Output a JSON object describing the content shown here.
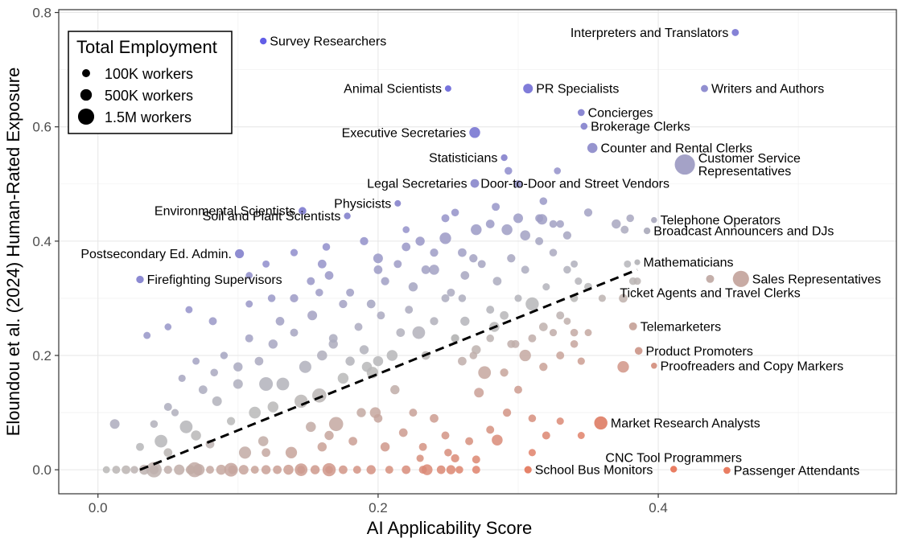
{
  "chart_data": {
    "type": "scatter",
    "xlabel": "AI Applicability Score",
    "ylabel": "Eloundou et al. (2024) Human-Rated Exposure",
    "xlim": [
      -0.028,
      0.57
    ],
    "ylim": [
      -0.042,
      0.805
    ],
    "x_ticks": [
      0.0,
      0.2,
      0.4
    ],
    "x_tick_labels": [
      "0.0",
      "0.2",
      "0.4"
    ],
    "y_ticks": [
      0.0,
      0.2,
      0.4,
      0.6,
      0.8
    ],
    "y_tick_labels": [
      "0.0",
      "0.2",
      "0.4",
      "0.6",
      "0.8"
    ],
    "grid": true,
    "trend_line": {
      "style": "dashed",
      "x": [
        0.03,
        0.385
      ],
      "y": [
        0.0,
        0.35
      ]
    },
    "colors": {
      "low": "#e8765a",
      "mid": "#b8b8b8",
      "high": "#5a55e6"
    },
    "legend": {
      "title": "Total Employment",
      "placement": "top-left",
      "entries": [
        {
          "label": "100K workers",
          "workers": 100000
        },
        {
          "label": "500K workers",
          "workers": 500000
        },
        {
          "label": "1.5M workers",
          "workers": 1500000
        }
      ]
    },
    "labeled_points": [
      {
        "name": "Survey Researchers",
        "x": 0.118,
        "y": 0.75,
        "workers": 30000,
        "label_side": "right"
      },
      {
        "name": "Interpreters and Translators",
        "x": 0.455,
        "y": 0.765,
        "workers": 50000,
        "label_side": "left"
      },
      {
        "name": "Animal Scientists",
        "x": 0.25,
        "y": 0.667,
        "workers": 20000,
        "label_side": "left"
      },
      {
        "name": "PR Specialists",
        "x": 0.307,
        "y": 0.667,
        "workers": 250000,
        "label_side": "right"
      },
      {
        "name": "Writers and Authors",
        "x": 0.433,
        "y": 0.667,
        "workers": 50000,
        "label_side": "right"
      },
      {
        "name": "Concierges",
        "x": 0.345,
        "y": 0.625,
        "workers": 40000,
        "label_side": "right"
      },
      {
        "name": "Brokerage Clerks",
        "x": 0.347,
        "y": 0.601,
        "workers": 40000,
        "label_side": "right"
      },
      {
        "name": "Executive Secretaries",
        "x": 0.269,
        "y": 0.59,
        "workers": 400000,
        "label_side": "left"
      },
      {
        "name": "Counter and Rental Clerks",
        "x": 0.353,
        "y": 0.563,
        "workers": 300000,
        "label_side": "right"
      },
      {
        "name": "Statisticians",
        "x": 0.29,
        "y": 0.546,
        "workers": 30000,
        "label_side": "left"
      },
      {
        "name": "Customer Service Representatives",
        "x": 0.419,
        "y": 0.534,
        "workers": 2800000,
        "label_side": "right"
      },
      {
        "name": "Legal Secretaries",
        "x": 0.269,
        "y": 0.501,
        "workers": 150000,
        "label_side": "left"
      },
      {
        "name": "Door-to-Door and Street Vendors",
        "x": 0.269,
        "y": 0.501,
        "workers": 0,
        "label_side": "right"
      },
      {
        "name": "Environmental Scientists",
        "x": 0.146,
        "y": 0.453,
        "workers": 80000,
        "label_side": "left"
      },
      {
        "name": "Physicists",
        "x": 0.214,
        "y": 0.466,
        "workers": 20000,
        "label_side": "left"
      },
      {
        "name": "Soil and Plant Scientists",
        "x": 0.178,
        "y": 0.444,
        "workers": 30000,
        "label_side": "left"
      },
      {
        "name": "Telephone Operators",
        "x": 0.397,
        "y": 0.437,
        "workers": 10000,
        "label_side": "right"
      },
      {
        "name": "Broadcast Announcers and DJs",
        "x": 0.392,
        "y": 0.418,
        "workers": 30000,
        "label_side": "right"
      },
      {
        "name": "Postsecondary Ed. Admin.",
        "x": 0.101,
        "y": 0.378,
        "workers": 180000,
        "label_side": "left"
      },
      {
        "name": "Mathematicians",
        "x": 0.385,
        "y": 0.363,
        "workers": 5000,
        "label_side": "right"
      },
      {
        "name": "Firefighting Supervisors",
        "x": 0.03,
        "y": 0.333,
        "workers": 70000,
        "label_side": "right"
      },
      {
        "name": "Sales Representatives",
        "x": 0.459,
        "y": 0.334,
        "workers": 1500000,
        "label_side": "right"
      },
      {
        "name": "Ticket Agents and Travel Clerks",
        "x": 0.437,
        "y": 0.334,
        "workers": 100000,
        "label_side": "below"
      },
      {
        "name": "Telemarketers",
        "x": 0.382,
        "y": 0.251,
        "workers": 100000,
        "label_side": "right"
      },
      {
        "name": "Product Promoters",
        "x": 0.386,
        "y": 0.208,
        "workers": 80000,
        "label_side": "right"
      },
      {
        "name": "Proofreaders and Copy Markers",
        "x": 0.397,
        "y": 0.182,
        "workers": 10000,
        "label_side": "right"
      },
      {
        "name": "Market Research Analysts",
        "x": 0.359,
        "y": 0.082,
        "workers": 800000,
        "label_side": "right"
      },
      {
        "name": "CNC Tool Programmers",
        "x": 0.411,
        "y": 0.001,
        "workers": 30000,
        "label_side": "above"
      },
      {
        "name": "School Bus Monitors",
        "x": 0.307,
        "y": 0.0,
        "workers": 60000,
        "label_side": "right"
      },
      {
        "name": "Passenger Attendants",
        "x": 0.449,
        "y": -0.001,
        "workers": 40000,
        "label_side": "right"
      }
    ],
    "series_points": [
      [
        0.006,
        0.0,
        50000
      ],
      [
        0.013,
        0.0,
        100000
      ],
      [
        0.02,
        0.0,
        150000
      ],
      [
        0.026,
        0.0,
        80000
      ],
      [
        0.033,
        0.0,
        300000
      ],
      [
        0.04,
        0.0,
        200000
      ],
      [
        0.05,
        0.0,
        120000
      ],
      [
        0.058,
        0.0,
        350000
      ],
      [
        0.066,
        0.0,
        200000
      ],
      [
        0.072,
        0.0,
        500000
      ],
      [
        0.08,
        0.0,
        100000
      ],
      [
        0.088,
        0.0,
        300000
      ],
      [
        0.096,
        0.0,
        150000
      ],
      [
        0.104,
        0.0,
        250000
      ],
      [
        0.112,
        0.0,
        100000
      ],
      [
        0.12,
        0.0,
        200000
      ],
      [
        0.128,
        0.0,
        150000
      ],
      [
        0.136,
        0.0,
        300000
      ],
      [
        0.145,
        0.0,
        100000
      ],
      [
        0.155,
        0.0,
        200000
      ],
      [
        0.165,
        0.0,
        80000
      ],
      [
        0.175,
        0.0,
        150000
      ],
      [
        0.185,
        0.0,
        100000
      ],
      [
        0.195,
        0.0,
        200000
      ],
      [
        0.208,
        0.0,
        100000
      ],
      [
        0.22,
        0.0,
        150000
      ],
      [
        0.232,
        0.0,
        100000
      ],
      [
        0.245,
        0.0,
        150000
      ],
      [
        0.258,
        0.0,
        80000
      ],
      [
        0.27,
        0.0,
        100000
      ],
      [
        0.04,
        0.0,
        1300000
      ],
      [
        0.069,
        0.0,
        1200000
      ],
      [
        0.095,
        0.0,
        900000
      ],
      [
        0.145,
        0.0,
        700000
      ],
      [
        0.165,
        0.0,
        800000
      ],
      [
        0.235,
        0.0,
        400000
      ],
      [
        0.252,
        0.0,
        200000
      ],
      [
        0.012,
        0.08,
        250000
      ],
      [
        0.03,
        0.04,
        100000
      ],
      [
        0.045,
        0.05,
        700000
      ],
      [
        0.05,
        0.03,
        150000
      ],
      [
        0.055,
        0.1,
        60000
      ],
      [
        0.063,
        0.075,
        700000
      ],
      [
        0.07,
        0.06,
        300000
      ],
      [
        0.08,
        0.045,
        150000
      ],
      [
        0.085,
        0.12,
        250000
      ],
      [
        0.095,
        0.085,
        120000
      ],
      [
        0.1,
        0.15,
        250000
      ],
      [
        0.105,
        0.03,
        600000
      ],
      [
        0.112,
        0.1,
        550000
      ],
      [
        0.118,
        0.05,
        300000
      ],
      [
        0.125,
        0.11,
        400000
      ],
      [
        0.132,
        0.15,
        700000
      ],
      [
        0.138,
        0.03,
        500000
      ],
      [
        0.145,
        0.12,
        800000
      ],
      [
        0.152,
        0.075,
        300000
      ],
      [
        0.158,
        0.13,
        1000000
      ],
      [
        0.165,
        0.06,
        200000
      ],
      [
        0.17,
        0.08,
        1000000
      ],
      [
        0.175,
        0.16,
        400000
      ],
      [
        0.182,
        0.05,
        150000
      ],
      [
        0.188,
        0.1,
        200000
      ],
      [
        0.192,
        0.18,
        300000
      ],
      [
        0.198,
        0.1,
        400000
      ],
      [
        0.205,
        0.04,
        200000
      ],
      [
        0.212,
        0.14,
        200000
      ],
      [
        0.218,
        0.065,
        150000
      ],
      [
        0.225,
        0.1,
        100000
      ],
      [
        0.232,
        0.04,
        100000
      ],
      [
        0.24,
        0.09,
        150000
      ],
      [
        0.248,
        0.06,
        100000
      ],
      [
        0.255,
        0.02,
        120000
      ],
      [
        0.265,
        0.05,
        100000
      ],
      [
        0.272,
        0.135,
        250000
      ],
      [
        0.28,
        0.07,
        100000
      ],
      [
        0.285,
        0.052,
        400000
      ],
      [
        0.292,
        0.1,
        120000
      ],
      [
        0.3,
        0.14,
        100000
      ],
      [
        0.31,
        0.09,
        80000
      ],
      [
        0.32,
        0.06,
        100000
      ],
      [
        0.33,
        0.085,
        60000
      ],
      [
        0.345,
        0.06,
        50000
      ],
      [
        0.25,
        0.03,
        80000
      ],
      [
        0.27,
        0.018,
        100000
      ],
      [
        0.23,
        0.02,
        60000
      ],
      [
        0.31,
        0.03,
        60000
      ],
      [
        0.2,
        0.09,
        150000
      ],
      [
        0.16,
        0.04,
        200000
      ],
      [
        0.12,
        0.03,
        150000
      ],
      [
        0.04,
        0.08,
        80000
      ],
      [
        0.05,
        0.11,
        100000
      ],
      [
        0.06,
        0.16,
        60000
      ],
      [
        0.07,
        0.19,
        50000
      ],
      [
        0.075,
        0.14,
        150000
      ],
      [
        0.083,
        0.17,
        80000
      ],
      [
        0.09,
        0.2,
        70000
      ],
      [
        0.1,
        0.18,
        200000
      ],
      [
        0.108,
        0.23,
        100000
      ],
      [
        0.115,
        0.19,
        150000
      ],
      [
        0.12,
        0.15,
        900000
      ],
      [
        0.125,
        0.22,
        200000
      ],
      [
        0.13,
        0.26,
        150000
      ],
      [
        0.14,
        0.24,
        100000
      ],
      [
        0.148,
        0.18,
        600000
      ],
      [
        0.153,
        0.27,
        250000
      ],
      [
        0.16,
        0.2,
        300000
      ],
      [
        0.168,
        0.23,
        150000
      ],
      [
        0.175,
        0.29,
        120000
      ],
      [
        0.18,
        0.19,
        200000
      ],
      [
        0.186,
        0.25,
        100000
      ],
      [
        0.19,
        0.21,
        200000
      ],
      [
        0.196,
        0.17,
        500000
      ],
      [
        0.202,
        0.27,
        100000
      ],
      [
        0.21,
        0.2,
        400000
      ],
      [
        0.216,
        0.24,
        150000
      ],
      [
        0.222,
        0.28,
        100000
      ],
      [
        0.229,
        0.24,
        700000
      ],
      [
        0.234,
        0.2,
        150000
      ],
      [
        0.24,
        0.26,
        120000
      ],
      [
        0.248,
        0.3,
        100000
      ],
      [
        0.255,
        0.23,
        100000
      ],
      [
        0.262,
        0.26,
        200000
      ],
      [
        0.268,
        0.2,
        80000
      ],
      [
        0.276,
        0.17,
        700000
      ],
      [
        0.283,
        0.25,
        300000
      ],
      [
        0.29,
        0.27,
        150000
      ],
      [
        0.298,
        0.22,
        100000
      ],
      [
        0.31,
        0.29,
        800000
      ],
      [
        0.318,
        0.25,
        150000
      ],
      [
        0.33,
        0.27,
        100000
      ],
      [
        0.34,
        0.24,
        80000
      ],
      [
        0.35,
        0.32,
        100000
      ],
      [
        0.36,
        0.3,
        60000
      ],
      [
        0.375,
        0.3,
        150000
      ],
      [
        0.382,
        0.33,
        80000
      ],
      [
        0.335,
        0.35,
        80000
      ],
      [
        0.32,
        0.32,
        60000
      ],
      [
        0.34,
        0.36,
        50000
      ],
      [
        0.168,
        0.22,
        200000
      ],
      [
        0.2,
        0.19,
        300000
      ],
      [
        0.26,
        0.19,
        150000
      ],
      [
        0.27,
        0.21,
        200000
      ],
      [
        0.29,
        0.17,
        120000
      ],
      [
        0.305,
        0.2,
        500000
      ],
      [
        0.318,
        0.18,
        120000
      ],
      [
        0.33,
        0.2,
        100000
      ],
      [
        0.34,
        0.22,
        80000
      ],
      [
        0.345,
        0.19,
        60000
      ],
      [
        0.35,
        0.24,
        50000
      ],
      [
        0.295,
        0.22,
        100000
      ],
      [
        0.28,
        0.23,
        80000
      ],
      [
        0.31,
        0.23,
        100000
      ],
      [
        0.325,
        0.24,
        60000
      ],
      [
        0.335,
        0.26,
        50000
      ],
      [
        0.375,
        0.18,
        500000
      ],
      [
        0.255,
        0.23,
        120000
      ],
      [
        0.035,
        0.235,
        50000
      ],
      [
        0.05,
        0.25,
        40000
      ],
      [
        0.065,
        0.28,
        50000
      ],
      [
        0.082,
        0.26,
        100000
      ],
      [
        0.108,
        0.29,
        50000
      ],
      [
        0.124,
        0.3,
        80000
      ],
      [
        0.14,
        0.3,
        120000
      ],
      [
        0.152,
        0.33,
        100000
      ],
      [
        0.165,
        0.34,
        150000
      ],
      [
        0.18,
        0.31,
        100000
      ],
      [
        0.195,
        0.29,
        150000
      ],
      [
        0.205,
        0.33,
        120000
      ],
      [
        0.214,
        0.36,
        100000
      ],
      [
        0.225,
        0.32,
        200000
      ],
      [
        0.234,
        0.35,
        150000
      ],
      [
        0.24,
        0.38,
        120000
      ],
      [
        0.252,
        0.31,
        100000
      ],
      [
        0.262,
        0.34,
        150000
      ],
      [
        0.274,
        0.36,
        100000
      ],
      [
        0.285,
        0.33,
        150000
      ],
      [
        0.295,
        0.37,
        120000
      ],
      [
        0.305,
        0.35,
        100000
      ],
      [
        0.315,
        0.4,
        100000
      ],
      [
        0.325,
        0.38,
        80000
      ],
      [
        0.335,
        0.41,
        120000
      ],
      [
        0.343,
        0.33,
        60000
      ],
      [
        0.16,
        0.36,
        150000
      ],
      [
        0.19,
        0.4,
        120000
      ],
      [
        0.2,
        0.37,
        250000
      ],
      [
        0.22,
        0.39,
        150000
      ],
      [
        0.23,
        0.4,
        200000
      ],
      [
        0.248,
        0.405,
        500000
      ],
      [
        0.26,
        0.38,
        150000
      ],
      [
        0.268,
        0.37,
        120000
      ],
      [
        0.28,
        0.43,
        150000
      ],
      [
        0.292,
        0.42,
        400000
      ],
      [
        0.305,
        0.41,
        300000
      ],
      [
        0.315,
        0.44,
        100000
      ],
      [
        0.325,
        0.43,
        80000
      ],
      [
        0.248,
        0.44,
        100000
      ],
      [
        0.255,
        0.45,
        80000
      ],
      [
        0.27,
        0.42,
        400000
      ],
      [
        0.284,
        0.46,
        100000
      ],
      [
        0.3,
        0.44,
        250000
      ],
      [
        0.317,
        0.438,
        350000
      ],
      [
        0.33,
        0.43,
        80000
      ],
      [
        0.35,
        0.45,
        120000
      ],
      [
        0.318,
        0.47,
        80000
      ],
      [
        0.3,
        0.5,
        80000
      ],
      [
        0.293,
        0.523,
        80000
      ],
      [
        0.328,
        0.523,
        40000
      ],
      [
        0.22,
        0.42,
        40000
      ],
      [
        0.163,
        0.39,
        80000
      ],
      [
        0.14,
        0.38,
        60000
      ],
      [
        0.12,
        0.36,
        50000
      ],
      [
        0.108,
        0.34,
        40000
      ],
      [
        0.24,
        0.35,
        300000
      ],
      [
        0.2,
        0.35,
        150000
      ],
      [
        0.26,
        0.3,
        80000
      ],
      [
        0.158,
        0.31,
        80000
      ],
      [
        0.28,
        0.28,
        100000
      ],
      [
        0.3,
        0.3,
        60000
      ],
      [
        0.34,
        0.3,
        80000
      ],
      [
        0.37,
        0.43,
        200000
      ],
      [
        0.376,
        0.42,
        100000
      ],
      [
        0.38,
        0.44,
        80000
      ],
      [
        0.378,
        0.36,
        50000
      ],
      [
        0.385,
        0.33,
        60000
      ]
    ]
  }
}
